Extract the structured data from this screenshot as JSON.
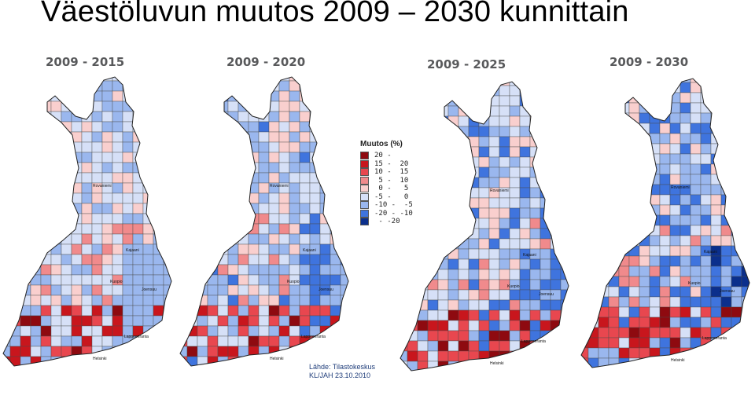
{
  "title": "Väestöluvun muutos 2009 – 2030 kunnittain",
  "panels": [
    {
      "label": "2009 - 2015",
      "intensity": 0.35
    },
    {
      "label": "2009 - 2020",
      "intensity": 0.6
    },
    {
      "label": "2009 - 2025",
      "intensity": 0.85
    },
    {
      "label": "2009 - 2030",
      "intensity": 1.0
    }
  ],
  "map_labels": [
    "Rovaniemi",
    "Kajaani",
    "Joensuu",
    "Kuopio",
    "Lappeenranta",
    "Helsinki"
  ],
  "legend": {
    "title": "Muutos (%)",
    "classes": [
      {
        "label": "20 -",
        "color": "#8e0a10"
      },
      {
        "label": "15 -  20",
        "color": "#c8161d"
      },
      {
        "label": "10 -  15",
        "color": "#e8474f"
      },
      {
        "label": " 5 -  10",
        "color": "#f08a8c"
      },
      {
        "label": " 0 -   5",
        "color": "#f9cfce"
      },
      {
        "label": "-5 -   0",
        "color": "#d6e0f7"
      },
      {
        "label": "-10 -  -5",
        "color": "#9ab7ee"
      },
      {
        "label": "-20 - -10",
        "color": "#3f74de"
      },
      {
        "label": " - -20",
        "color": "#0b2f8c"
      }
    ]
  },
  "source": {
    "line1": "Lähde: Tilastokeskus",
    "line2": "KL/JAH 23.10.2010"
  }
}
